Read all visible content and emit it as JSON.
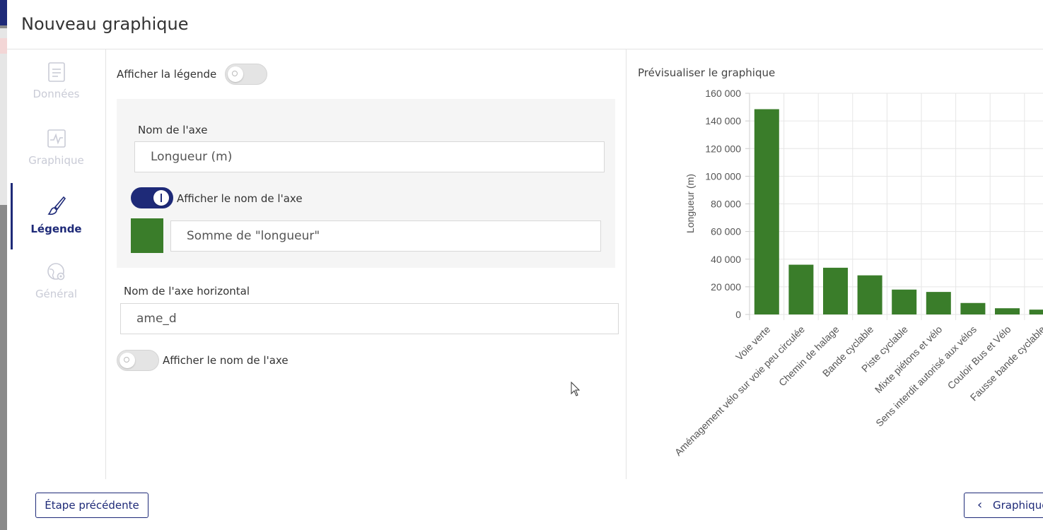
{
  "dialog": {
    "title": "Nouveau graphique"
  },
  "nav": [
    {
      "label": "Données",
      "icon": "document-icon",
      "active": false
    },
    {
      "label": "Graphique",
      "icon": "chart-line-icon",
      "active": false
    },
    {
      "label": "Légende",
      "icon": "brush-icon",
      "active": true
    },
    {
      "label": "Général",
      "icon": "globe-settings-icon",
      "active": false
    }
  ],
  "form": {
    "show_legend_label": "Afficher la légende",
    "show_legend_on": false,
    "axis_name_label": "Nom de l'axe",
    "axis_name_value": "Longueur (m)",
    "show_axis_name_label": "Afficher le nom de l'axe",
    "show_axis_name_on": true,
    "series_color": "#3a7d2a",
    "series_name_value": "Somme de \"longueur\"",
    "h_axis_name_label": "Nom de l'axe horizontal",
    "h_axis_name_value": "ame_d",
    "show_h_axis_name_label": "Afficher le nom de l'axe",
    "show_h_axis_name_on": false
  },
  "preview": {
    "title": "Prévisualiser le graphique"
  },
  "chart_data": {
    "type": "bar",
    "ylabel": "Longueur (m)",
    "xlabel": "",
    "ylim": [
      0,
      160000
    ],
    "yticks": [
      "0",
      "20 000",
      "40 000",
      "60 000",
      "80 000",
      "100 000",
      "120 000",
      "140 000",
      "160 000"
    ],
    "grid": true,
    "color": "#3a7d2a",
    "categories": [
      "Voie verte",
      "Aménagement vélo sur voie peu circulée",
      "Chemin de halage",
      "Bande cyclable",
      "Piste cyclable",
      "Mixte piétons et vélo",
      "Sens interdit autorisé aux vélos",
      "Couloir Bus et Vélo",
      "Fausse bande cyclable"
    ],
    "values": [
      148500,
      36000,
      33800,
      28300,
      18000,
      16300,
      8300,
      4500,
      3500
    ]
  },
  "footer": {
    "prev_label": "Étape précédente",
    "next_label": "Graphique"
  }
}
